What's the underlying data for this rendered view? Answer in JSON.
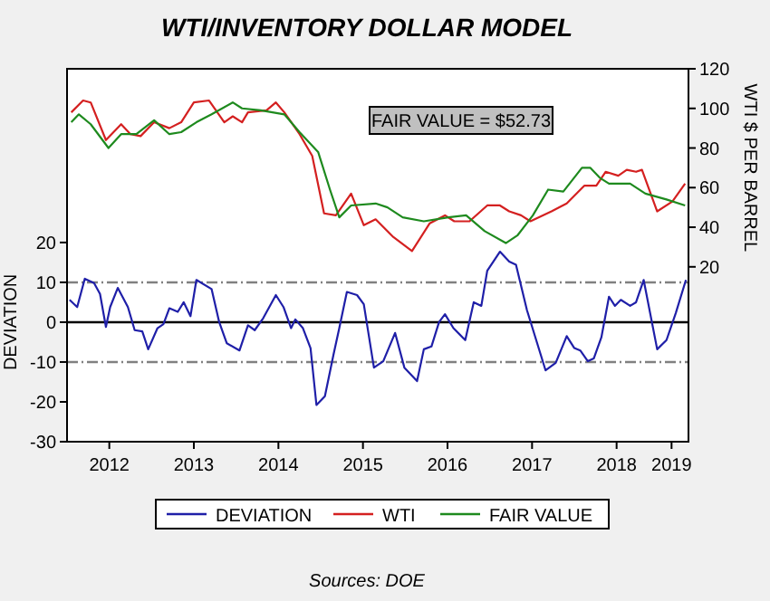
{
  "chart_data": {
    "type": "line",
    "title": "WTI/INVENTORY DOLLAR MODEL",
    "ylabel": "DEVIATION",
    "y2label": "WTI $ PER BARREL",
    "annotations": [
      "FAIR VALUE = $52.73",
      "Sources: DOE"
    ],
    "xlim": [
      2012,
      2019.35
    ],
    "xticks": [
      {
        "value": 2012.5,
        "label": "2012"
      },
      {
        "value": 2013.5,
        "label": "2013"
      },
      {
        "value": 2014.5,
        "label": "2014"
      },
      {
        "value": 2015.5,
        "label": "2015"
      },
      {
        "value": 2016.5,
        "label": "2016"
      },
      {
        "value": 2017.5,
        "label": "2017"
      },
      {
        "value": 2018.5,
        "label": "2018"
      },
      {
        "value": 2019.15,
        "label": "2019"
      }
    ],
    "ylim": [
      -30,
      63.6
    ],
    "yticks": [
      -30,
      -20,
      -10,
      0,
      10,
      20
    ],
    "y2lim": [
      -68.3,
      120
    ],
    "y2ticks": [
      20,
      40,
      60,
      80,
      100,
      120
    ],
    "ref_lines": [
      {
        "axis": "y",
        "value": 10,
        "color": "#808080",
        "line_style": "dashdot"
      },
      {
        "axis": "y",
        "value": 0,
        "color": "#000000",
        "line_style": "solid"
      },
      {
        "axis": "y",
        "value": -10,
        "color": "#808080",
        "line_style": "dashdot"
      }
    ],
    "legend": "bottom",
    "grid": false,
    "line_style": "solid",
    "marker": "none",
    "series": [
      {
        "name": "DEVIATION",
        "color": "#1f1fa8",
        "axis": "y",
        "x": [
          2012.03,
          2012.12,
          2012.21,
          2012.32,
          2012.39,
          2012.46,
          2012.51,
          2012.6,
          2012.72,
          2012.8,
          2012.89,
          2012.96,
          2013.07,
          2013.14,
          2013.21,
          2013.31,
          2013.38,
          2013.46,
          2013.53,
          2013.71,
          2013.8,
          2013.89,
          2014.04,
          2014.14,
          2014.22,
          2014.32,
          2014.47,
          2014.56,
          2014.65,
          2014.7,
          2014.79,
          2014.88,
          2014.95,
          2015.05,
          2015.15,
          2015.22,
          2015.31,
          2015.43,
          2015.51,
          2015.63,
          2015.74,
          2015.88,
          2015.99,
          2016.14,
          2016.22,
          2016.31,
          2016.4,
          2016.47,
          2016.57,
          2016.71,
          2016.81,
          2016.9,
          2016.97,
          2017.12,
          2017.23,
          2017.31,
          2017.44,
          2017.66,
          2017.78,
          2017.91,
          2018.0,
          2018.07,
          2018.16,
          2018.23,
          2018.32,
          2018.41,
          2018.48,
          2018.55,
          2018.66,
          2018.73,
          2018.82,
          2018.98,
          2019.09,
          2019.2,
          2019.32
        ],
        "values": [
          5.6,
          3.8,
          10.9,
          9.8,
          7.1,
          -1.2,
          3.8,
          8.6,
          3.8,
          -2,
          -2.3,
          -6.8,
          -1.5,
          -0.5,
          3.5,
          2.6,
          5,
          1.5,
          10.6,
          8.3,
          0,
          -5.3,
          -7.1,
          -0.8,
          -2,
          1,
          6.8,
          3.8,
          -1.5,
          0.7,
          -1.5,
          -6.5,
          -20.8,
          -18.6,
          -8.3,
          -1.5,
          7.6,
          6.8,
          4.5,
          -11.4,
          -9.8,
          -2.7,
          -11.4,
          -14.8,
          -6.8,
          -6.1,
          0,
          2,
          -1.5,
          -4.5,
          5,
          4.1,
          12.9,
          17.7,
          15.2,
          14.4,
          3,
          -12.1,
          -10.2,
          -3.5,
          -6.5,
          -7.1,
          -9.8,
          -9.1,
          -3.8,
          6.4,
          4.1,
          5.6,
          4.1,
          5,
          10.6,
          -6.8,
          -4.5,
          2.3,
          10.6
        ]
      },
      {
        "name": "WTI",
        "color": "#d42020",
        "axis": "y2",
        "x": [
          2012.05,
          2012.19,
          2012.28,
          2012.46,
          2012.64,
          2012.75,
          2012.87,
          2013.03,
          2013.21,
          2013.35,
          2013.5,
          2013.68,
          2013.86,
          2013.96,
          2014.07,
          2014.14,
          2014.36,
          2014.47,
          2014.57,
          2014.75,
          2014.9,
          2015.04,
          2015.18,
          2015.36,
          2015.51,
          2015.65,
          2015.86,
          2016.08,
          2016.29,
          2016.47,
          2016.58,
          2016.76,
          2016.97,
          2017.12,
          2017.23,
          2017.37,
          2017.48,
          2017.73,
          2017.91,
          2018.12,
          2018.26,
          2018.37,
          2018.52,
          2018.62,
          2018.73,
          2018.8,
          2018.98,
          2019.16,
          2019.31
        ],
        "values": [
          98,
          104,
          103,
          84,
          92,
          87,
          86,
          93,
          90,
          93,
          103,
          104,
          93,
          96,
          93,
          98,
          99,
          103,
          98,
          87,
          76,
          47,
          46,
          57,
          41,
          44,
          35,
          28,
          42,
          46,
          43,
          43,
          51,
          51,
          48,
          46,
          43,
          48,
          52,
          61,
          61,
          68,
          66,
          69,
          68,
          69,
          48,
          53,
          62
        ]
      },
      {
        "name": "FAIR VALUE",
        "color": "#1e8a1e",
        "axis": "y2",
        "x": [
          2012.05,
          2012.14,
          2012.28,
          2012.49,
          2012.64,
          2012.82,
          2013.03,
          2013.21,
          2013.35,
          2013.53,
          2013.71,
          2013.96,
          2014.07,
          2014.29,
          2014.57,
          2014.75,
          2014.97,
          2015.11,
          2015.22,
          2015.36,
          2015.65,
          2015.79,
          2015.97,
          2016.22,
          2016.51,
          2016.72,
          2016.94,
          2017.19,
          2017.33,
          2017.51,
          2017.69,
          2017.87,
          2018.09,
          2018.19,
          2018.3,
          2018.41,
          2018.66,
          2018.84,
          2019.09,
          2019.31
        ],
        "values": [
          93,
          97,
          92,
          80,
          87,
          87,
          94,
          87,
          88,
          93,
          97,
          103,
          100,
          99,
          97,
          88,
          78,
          59,
          45,
          51,
          52,
          50,
          45,
          43,
          45,
          46,
          38,
          32,
          36,
          46,
          59,
          58,
          70,
          70,
          65,
          62,
          62,
          57,
          54,
          51
        ]
      }
    ]
  }
}
